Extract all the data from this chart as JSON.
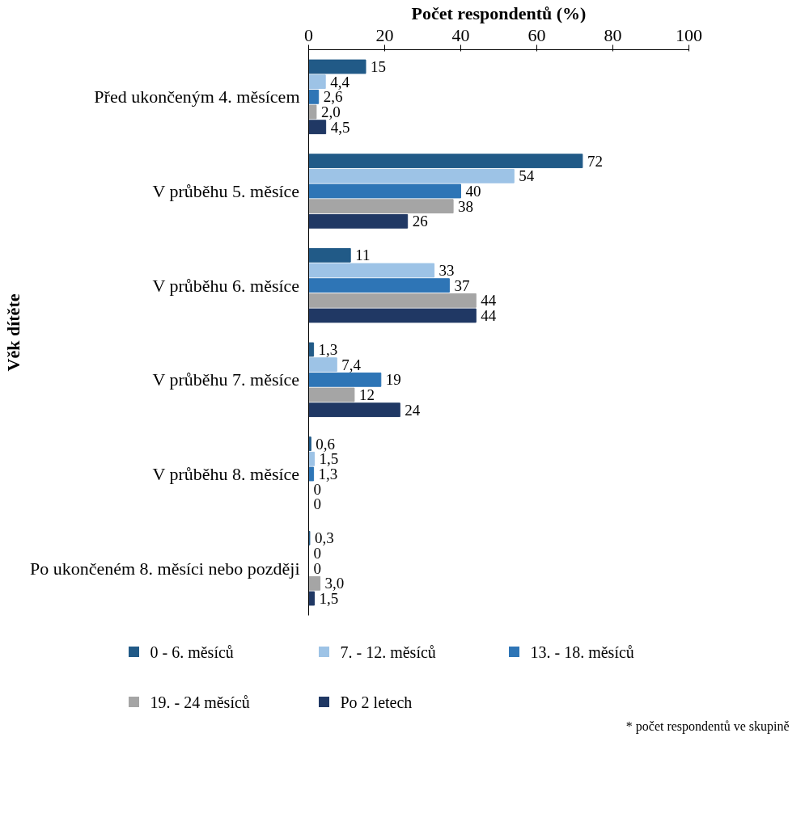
{
  "chart_data": {
    "type": "bar",
    "orientation": "horizontal",
    "xlabel": "Počet respondentů (%)",
    "ylabel": "Věk dítěte",
    "categories": [
      "Před ukončeným 4. měsícem",
      "V průběhu 5. měsíce",
      "V průběhu 6. měsíce",
      "V průběhu 7. měsíce",
      "V průběhu 8. měsíce",
      "Po ukončeném 8. měsíci nebo později"
    ],
    "xlim": [
      0,
      100
    ],
    "xticks": [
      0,
      20,
      40,
      60,
      80,
      100
    ],
    "grid": false,
    "legend": "bottom",
    "series": [
      {
        "name": "0 - 6. měsíců",
        "color": "#215a87",
        "values": [
          15,
          72,
          11,
          1.3,
          0.6,
          0.3
        ],
        "value_labels": [
          "15",
          "72",
          "11",
          "1,3",
          "0,6",
          "0,3"
        ]
      },
      {
        "name": "7. - 12. měsíců",
        "color": "#9dc3e6",
        "values": [
          4.4,
          54,
          33,
          7.4,
          1.5,
          0
        ],
        "value_labels": [
          "4,4",
          "54",
          "33",
          "7,4",
          "1,5",
          "0"
        ]
      },
      {
        "name": "13. - 18. měsíců",
        "color": "#2e75b6",
        "values": [
          2.6,
          40,
          37,
          19,
          1.3,
          0
        ],
        "value_labels": [
          "2,6",
          "40",
          "37",
          "19",
          "1,3",
          "0"
        ]
      },
      {
        "name": "19. - 24 měsíců",
        "color": "#a5a5a5",
        "values": [
          2.0,
          38,
          44,
          12,
          0,
          3.0
        ],
        "value_labels": [
          "2,0",
          "38",
          "44",
          "12",
          "0",
          "3,0"
        ]
      },
      {
        "name": "Po 2 letech",
        "color": "#203864",
        "values": [
          4.5,
          26,
          44,
          24,
          0,
          1.5
        ],
        "value_labels": [
          "4,5",
          "26",
          "44",
          "24",
          "0",
          "1,5"
        ]
      }
    ],
    "annotations": [
      "* počet respondentů ve skupině"
    ]
  }
}
